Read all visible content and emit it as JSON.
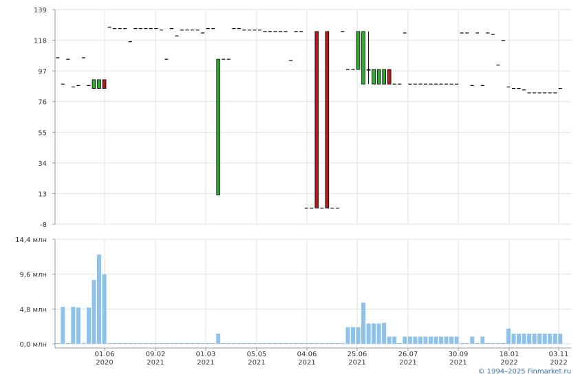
{
  "copyright": "© 1994–2025 Finmarket.ru",
  "colors": {
    "up": "#33aa33",
    "down": "#b01c1c",
    "volume": "#8fc3ec",
    "grid": "#e2e2e2",
    "axis": "#9a9a9a"
  },
  "chart_data": [
    {
      "type": "candlestick",
      "title": "",
      "ylim": [
        -8,
        139
      ],
      "y_ticks": [
        "139",
        "118",
        "97",
        "76",
        "55",
        "34",
        "13",
        "-8"
      ],
      "x_ticks": [
        {
          "day": "01.06",
          "year": "2020"
        },
        {
          "day": "09.02",
          "year": "2021"
        },
        {
          "day": "01.03",
          "year": "2021"
        },
        {
          "day": "05.05",
          "year": "2021"
        },
        {
          "day": "04.06",
          "year": "2021"
        },
        {
          "day": "25.06",
          "year": "2021"
        },
        {
          "day": "26.07",
          "year": "2021"
        },
        {
          "day": "30.09",
          "year": "2021"
        },
        {
          "day": "18.01",
          "year": "2022"
        },
        {
          "day": "03.11",
          "year": "2022"
        }
      ],
      "grid": true,
      "candles": [
        {
          "i": 0,
          "o": 106,
          "h": 106,
          "l": 106,
          "c": 106
        },
        {
          "i": 1,
          "o": 88,
          "h": 88,
          "l": 88,
          "c": 88
        },
        {
          "i": 2,
          "o": 105,
          "h": 105,
          "l": 105,
          "c": 105
        },
        {
          "i": 3,
          "o": 86,
          "h": 86,
          "l": 86,
          "c": 86
        },
        {
          "i": 4,
          "o": 87,
          "h": 87,
          "l": 87,
          "c": 87
        },
        {
          "i": 5,
          "o": 106,
          "h": 106,
          "l": 106,
          "c": 106
        },
        {
          "i": 6,
          "o": 87,
          "h": 87,
          "l": 87,
          "c": 87
        },
        {
          "i": 7,
          "o": 85,
          "h": 91,
          "l": 85,
          "c": 91
        },
        {
          "i": 8,
          "o": 85,
          "h": 91,
          "l": 85,
          "c": 91
        },
        {
          "i": 9,
          "o": 91,
          "h": 91,
          "l": 85,
          "c": 85
        },
        {
          "i": 10,
          "o": 127,
          "h": 127,
          "l": 127,
          "c": 127
        },
        {
          "i": 11,
          "o": 126,
          "h": 126,
          "l": 126,
          "c": 126
        },
        {
          "i": 12,
          "o": 126,
          "h": 126,
          "l": 126,
          "c": 126
        },
        {
          "i": 13,
          "o": 126,
          "h": 126,
          "l": 126,
          "c": 126
        },
        {
          "i": 14,
          "o": 117,
          "h": 117,
          "l": 117,
          "c": 117
        },
        {
          "i": 15,
          "o": 126,
          "h": 126,
          "l": 126,
          "c": 126
        },
        {
          "i": 16,
          "o": 126,
          "h": 126,
          "l": 126,
          "c": 126
        },
        {
          "i": 17,
          "o": 126,
          "h": 126,
          "l": 126,
          "c": 126
        },
        {
          "i": 18,
          "o": 126,
          "h": 126,
          "l": 126,
          "c": 126
        },
        {
          "i": 19,
          "o": 126,
          "h": 126,
          "l": 126,
          "c": 126
        },
        {
          "i": 20,
          "o": 125,
          "h": 125,
          "l": 125,
          "c": 125
        },
        {
          "i": 21,
          "o": 105,
          "h": 105,
          "l": 105,
          "c": 105
        },
        {
          "i": 22,
          "o": 126,
          "h": 126,
          "l": 126,
          "c": 126
        },
        {
          "i": 23,
          "o": 121,
          "h": 121,
          "l": 121,
          "c": 121
        },
        {
          "i": 24,
          "o": 125,
          "h": 125,
          "l": 125,
          "c": 125
        },
        {
          "i": 25,
          "o": 125,
          "h": 125,
          "l": 125,
          "c": 125
        },
        {
          "i": 26,
          "o": 125,
          "h": 125,
          "l": 125,
          "c": 125
        },
        {
          "i": 27,
          "o": 125,
          "h": 125,
          "l": 125,
          "c": 125
        },
        {
          "i": 28,
          "o": 123,
          "h": 123,
          "l": 123,
          "c": 123
        },
        {
          "i": 29,
          "o": 126,
          "h": 126,
          "l": 126,
          "c": 126
        },
        {
          "i": 30,
          "o": 126,
          "h": 126,
          "l": 126,
          "c": 126
        },
        {
          "i": 31,
          "o": 12,
          "h": 105,
          "l": 12,
          "c": 105
        },
        {
          "i": 32,
          "o": 105,
          "h": 105,
          "l": 105,
          "c": 105
        },
        {
          "i": 33,
          "o": 105,
          "h": 105,
          "l": 105,
          "c": 105
        },
        {
          "i": 34,
          "o": 126,
          "h": 126,
          "l": 126,
          "c": 126
        },
        {
          "i": 35,
          "o": 126,
          "h": 126,
          "l": 126,
          "c": 126
        },
        {
          "i": 36,
          "o": 125,
          "h": 125,
          "l": 125,
          "c": 125
        },
        {
          "i": 37,
          "o": 125,
          "h": 125,
          "l": 125,
          "c": 125
        },
        {
          "i": 38,
          "o": 125,
          "h": 125,
          "l": 125,
          "c": 125
        },
        {
          "i": 39,
          "o": 125,
          "h": 125,
          "l": 125,
          "c": 125
        },
        {
          "i": 40,
          "o": 124,
          "h": 124,
          "l": 124,
          "c": 124
        },
        {
          "i": 41,
          "o": 124,
          "h": 124,
          "l": 124,
          "c": 124
        },
        {
          "i": 42,
          "o": 124,
          "h": 124,
          "l": 124,
          "c": 124
        },
        {
          "i": 43,
          "o": 124,
          "h": 124,
          "l": 124,
          "c": 124
        },
        {
          "i": 44,
          "o": 124,
          "h": 124,
          "l": 124,
          "c": 124
        },
        {
          "i": 45,
          "o": 104,
          "h": 104,
          "l": 104,
          "c": 104
        },
        {
          "i": 46,
          "o": 124,
          "h": 124,
          "l": 124,
          "c": 124
        },
        {
          "i": 47,
          "o": 124,
          "h": 124,
          "l": 124,
          "c": 124
        },
        {
          "i": 48,
          "o": 3,
          "h": 3,
          "l": 3,
          "c": 3
        },
        {
          "i": 49,
          "o": 3,
          "h": 3,
          "l": 3,
          "c": 3
        },
        {
          "i": 50,
          "o": 124,
          "h": 124,
          "l": 3,
          "c": 3
        },
        {
          "i": 51,
          "o": 3,
          "h": 3,
          "l": 3,
          "c": 3
        },
        {
          "i": 52,
          "o": 124,
          "h": 124,
          "l": 3,
          "c": 3
        },
        {
          "i": 53,
          "o": 3,
          "h": 3,
          "l": 3,
          "c": 3
        },
        {
          "i": 54,
          "o": 3,
          "h": 3,
          "l": 3,
          "c": 3
        },
        {
          "i": 55,
          "o": 124,
          "h": 124,
          "l": 124,
          "c": 124
        },
        {
          "i": 56,
          "o": 98,
          "h": 98,
          "l": 98,
          "c": 98
        },
        {
          "i": 57,
          "o": 98,
          "h": 98,
          "l": 98,
          "c": 98
        },
        {
          "i": 58,
          "o": 98,
          "h": 124,
          "l": 98,
          "c": 124
        },
        {
          "i": 59,
          "o": 88,
          "h": 124,
          "l": 88,
          "c": 124
        },
        {
          "i": 60,
          "o": 98,
          "h": 124,
          "l": 88,
          "c": 98
        },
        {
          "i": 61,
          "o": 88,
          "h": 98,
          "l": 88,
          "c": 98
        },
        {
          "i": 62,
          "o": 88,
          "h": 98,
          "l": 88,
          "c": 98
        },
        {
          "i": 63,
          "o": 88,
          "h": 98,
          "l": 88,
          "c": 98
        },
        {
          "i": 64,
          "o": 98,
          "h": 98,
          "l": 88,
          "c": 88
        },
        {
          "i": 65,
          "o": 88,
          "h": 88,
          "l": 88,
          "c": 88
        },
        {
          "i": 66,
          "o": 88,
          "h": 88,
          "l": 88,
          "c": 88
        },
        {
          "i": 67,
          "o": 123,
          "h": 123,
          "l": 123,
          "c": 123
        },
        {
          "i": 68,
          "o": 88,
          "h": 88,
          "l": 88,
          "c": 88
        },
        {
          "i": 69,
          "o": 88,
          "h": 88,
          "l": 88,
          "c": 88
        },
        {
          "i": 70,
          "o": 88,
          "h": 88,
          "l": 88,
          "c": 88
        },
        {
          "i": 71,
          "o": 88,
          "h": 88,
          "l": 88,
          "c": 88
        },
        {
          "i": 72,
          "o": 88,
          "h": 88,
          "l": 88,
          "c": 88
        },
        {
          "i": 73,
          "o": 88,
          "h": 88,
          "l": 88,
          "c": 88
        },
        {
          "i": 74,
          "o": 88,
          "h": 88,
          "l": 88,
          "c": 88
        },
        {
          "i": 75,
          "o": 88,
          "h": 88,
          "l": 88,
          "c": 88
        },
        {
          "i": 76,
          "o": 88,
          "h": 88,
          "l": 88,
          "c": 88
        },
        {
          "i": 77,
          "o": 88,
          "h": 88,
          "l": 88,
          "c": 88
        },
        {
          "i": 78,
          "o": 123,
          "h": 123,
          "l": 123,
          "c": 123
        },
        {
          "i": 79,
          "o": 123,
          "h": 123,
          "l": 123,
          "c": 123
        },
        {
          "i": 80,
          "o": 87,
          "h": 87,
          "l": 87,
          "c": 87
        },
        {
          "i": 81,
          "o": 123,
          "h": 123,
          "l": 123,
          "c": 123
        },
        {
          "i": 82,
          "o": 87,
          "h": 87,
          "l": 87,
          "c": 87
        },
        {
          "i": 83,
          "o": 123,
          "h": 123,
          "l": 123,
          "c": 123
        },
        {
          "i": 84,
          "o": 122,
          "h": 122,
          "l": 122,
          "c": 122
        },
        {
          "i": 85,
          "o": 101,
          "h": 101,
          "l": 101,
          "c": 101
        },
        {
          "i": 86,
          "o": 118,
          "h": 118,
          "l": 118,
          "c": 118
        },
        {
          "i": 87,
          "o": 86,
          "h": 86,
          "l": 86,
          "c": 86
        },
        {
          "i": 88,
          "o": 85,
          "h": 85,
          "l": 85,
          "c": 85
        },
        {
          "i": 89,
          "o": 85,
          "h": 85,
          "l": 85,
          "c": 85
        },
        {
          "i": 90,
          "o": 84,
          "h": 84,
          "l": 84,
          "c": 84
        },
        {
          "i": 91,
          "o": 82,
          "h": 82,
          "l": 82,
          "c": 82
        },
        {
          "i": 92,
          "o": 82,
          "h": 82,
          "l": 82,
          "c": 82
        },
        {
          "i": 93,
          "o": 82,
          "h": 82,
          "l": 82,
          "c": 82
        },
        {
          "i": 94,
          "o": 82,
          "h": 82,
          "l": 82,
          "c": 82
        },
        {
          "i": 95,
          "o": 82,
          "h": 82,
          "l": 82,
          "c": 82
        },
        {
          "i": 96,
          "o": 82,
          "h": 82,
          "l": 82,
          "c": 82
        },
        {
          "i": 97,
          "o": 85,
          "h": 85,
          "l": 85,
          "c": 85
        }
      ]
    },
    {
      "type": "bar",
      "title": "",
      "ylim": [
        0,
        14.4
      ],
      "y_ticks": [
        "14,4 млн",
        "9,6 млн",
        "4,8 млн",
        "0,0 млн"
      ],
      "x_ticks": [
        "01.06",
        "09.02",
        "01.03",
        "05.05",
        "04.06",
        "25.06",
        "26.07",
        "30.09",
        "18.01",
        "03.11"
      ],
      "grid": true,
      "values": [
        0.1,
        5.1,
        0.1,
        5.1,
        5.0,
        0.1,
        5.0,
        8.8,
        12.3,
        9.6,
        0.1,
        0.1,
        0.1,
        0.1,
        0.1,
        0.1,
        0.1,
        0.1,
        0.1,
        0.1,
        0.1,
        0.1,
        0.1,
        0.1,
        0.1,
        0.1,
        0.1,
        0.1,
        0.1,
        0.1,
        0.1,
        1.4,
        0.1,
        0.1,
        0.1,
        0.1,
        0.1,
        0.1,
        0.1,
        0.1,
        0.1,
        0.1,
        0.1,
        0.1,
        0.1,
        0.1,
        0.1,
        0.1,
        0.1,
        0.1,
        0.1,
        0.1,
        0.1,
        0.1,
        0.1,
        0.1,
        2.3,
        2.3,
        2.3,
        5.7,
        2.8,
        2.8,
        2.8,
        2.9,
        1.0,
        1.0,
        0.1,
        1.0,
        1.0,
        1.0,
        1.0,
        1.0,
        1.0,
        1.0,
        1.0,
        1.0,
        1.0,
        1.0,
        0.1,
        0.1,
        1.0,
        0.1,
        1.0,
        0.1,
        0.1,
        0.1,
        0.1,
        2.1,
        1.4,
        1.4,
        1.4,
        1.4,
        1.4,
        1.4,
        1.4,
        1.4,
        1.4,
        1.4
      ]
    }
  ]
}
